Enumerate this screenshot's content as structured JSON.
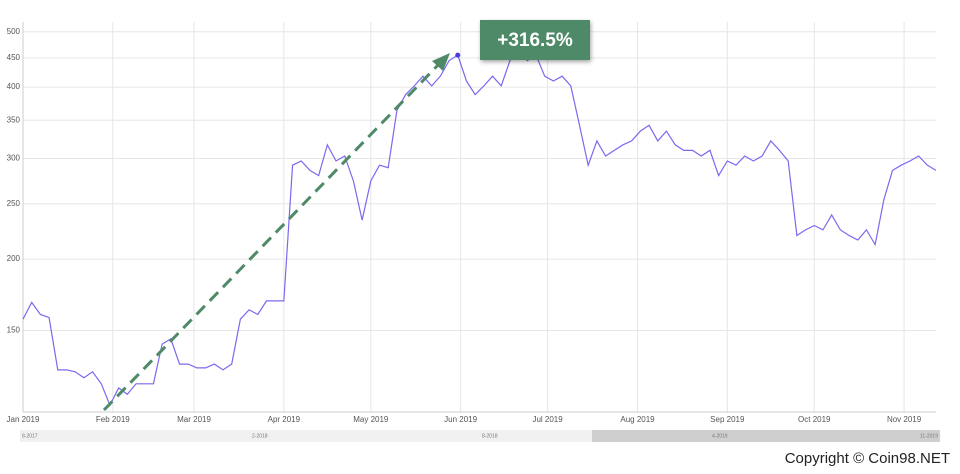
{
  "chart_data": {
    "type": "line",
    "series": [
      {
        "color": "#7b68ee",
        "values": [
          157,
          168,
          160,
          158,
          128,
          128,
          127,
          124,
          127,
          121,
          111,
          119,
          116,
          121,
          121,
          121,
          142,
          145,
          131,
          131,
          129,
          129,
          131,
          128,
          131,
          157,
          163,
          160,
          169,
          169,
          169,
          292,
          297,
          286,
          280,
          317,
          297,
          303,
          274,
          234,
          274,
          292,
          289,
          364,
          388,
          402,
          418,
          402,
          418,
          445,
          455,
          410,
          388,
          402,
          418,
          402,
          445,
          464,
          445,
          455,
          418,
          410,
          418,
          402,
          343,
          292,
          322,
          303,
          310,
          317,
          322,
          335,
          343,
          322,
          335,
          317,
          310,
          310,
          303,
          310,
          280,
          297,
          292,
          303,
          297,
          303,
          322,
          310,
          297,
          220,
          225,
          229,
          225,
          239,
          225,
          220,
          216,
          225,
          212,
          254,
          286,
          292,
          297,
          303,
          292,
          286
        ]
      }
    ],
    "log": true,
    "grid": true,
    "ylim": [
      108,
      520
    ],
    "yticks": [
      150,
      200,
      250,
      300,
      350,
      400,
      450,
      500
    ],
    "xlim": [
      0,
      105
    ],
    "xticks": [
      {
        "value": 0,
        "label": "Jan 2019"
      },
      {
        "value": 10.33,
        "label": "Feb 2019"
      },
      {
        "value": 19.67,
        "label": "Mar 2019"
      },
      {
        "value": 30,
        "label": "Apr 2019"
      },
      {
        "value": 40,
        "label": "May 2019"
      },
      {
        "value": 50.33,
        "label": "Jun 2019"
      },
      {
        "value": 60.33,
        "label": "Jul 2019"
      },
      {
        "value": 70.67,
        "label": "Aug 2019"
      },
      {
        "value": 81,
        "label": "Sep 2019"
      },
      {
        "value": 91,
        "label": "Oct 2019"
      },
      {
        "value": 101.33,
        "label": "Nov 2019"
      }
    ],
    "annotation": "+316.5%"
  },
  "navigator": {
    "labels": [
      "8-2017",
      "2-2018",
      "8-2018",
      "4-2019",
      "11-2019"
    ]
  },
  "footer": "Copyright © Coin98.NET"
}
